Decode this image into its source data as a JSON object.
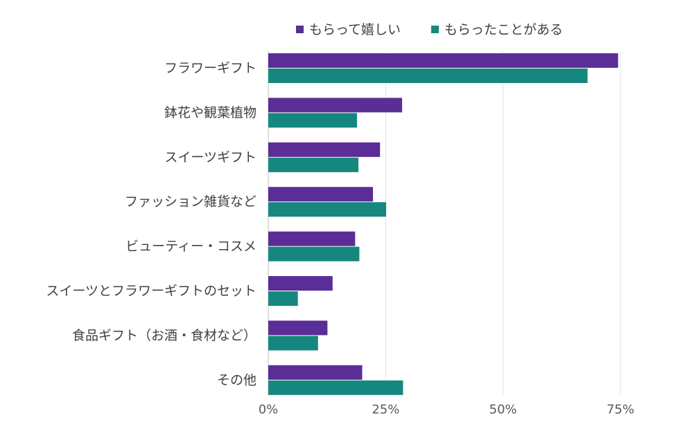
{
  "chart_data": {
    "type": "bar",
    "orientation": "horizontal",
    "categories": [
      "フラワーギフト",
      "鉢花や観葉植物",
      "スイーツギフト",
      "ファッション雑貨など",
      "ビューティー・コスメ",
      "スイーツとフラワーギフトのセット",
      "食品ギフト（お酒・食材など）",
      "その他"
    ],
    "series": [
      {
        "name": "もらって嬉しい",
        "color": "#5b2d96",
        "values": [
          74.5,
          28.5,
          23.8,
          22.3,
          18.5,
          13.7,
          12.6,
          20.0
        ]
      },
      {
        "name": "もらったことがある",
        "color": "#16877f",
        "values": [
          68.0,
          18.9,
          19.2,
          25.1,
          19.4,
          6.3,
          10.6,
          28.7
        ]
      }
    ],
    "xlim": [
      0,
      75
    ],
    "xticks": [
      0,
      25,
      50,
      75
    ],
    "xtick_labels": [
      "0%",
      "25%",
      "50%",
      "75%"
    ],
    "grid": "vertical",
    "legend_position": "top"
  }
}
